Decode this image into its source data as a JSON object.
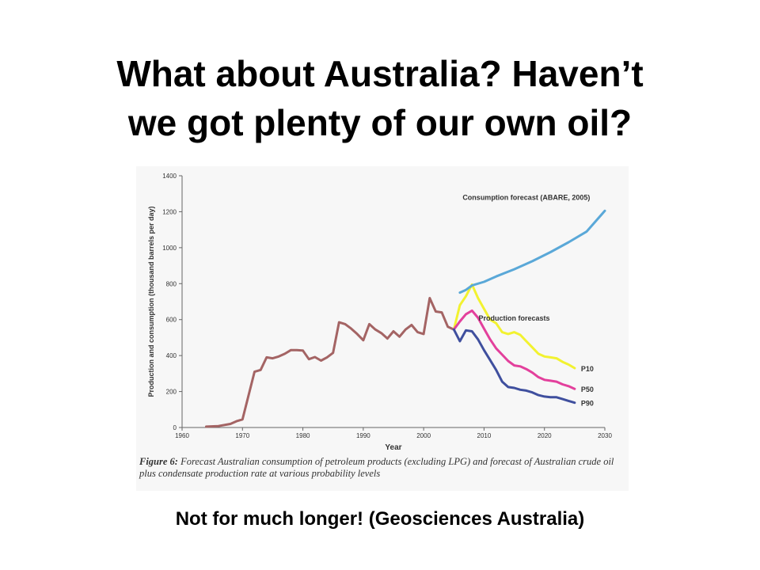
{
  "slide": {
    "title_line1": "What about Australia? Haven’t",
    "title_line2": "we got plenty of our own oil?",
    "footer": "Not for much longer! (Geosciences Australia)"
  },
  "figure": {
    "caption_label": "Figure 6:",
    "caption_text": "Forecast Australian consumption of petroleum products (excluding LPG) and forecast of Australian crude oil plus condensate production rate at various probability levels"
  },
  "chart_data": {
    "type": "line",
    "title": "",
    "xlabel": "Year",
    "ylabel": "Production and consumption (thousand barrels per day)",
    "xlim": [
      1960,
      2030
    ],
    "ylim": [
      0,
      1400
    ],
    "x_ticks": [
      1960,
      1970,
      1980,
      1990,
      2000,
      2010,
      2020,
      2030
    ],
    "y_ticks": [
      0,
      200,
      400,
      600,
      800,
      1000,
      1200,
      1400
    ],
    "grid": false,
    "annotations": [
      {
        "text": "Consumption forecast (ABARE, 2005)",
        "x": 2017,
        "y": 1265
      },
      {
        "text": "Production forecasts",
        "x": 2015,
        "y": 595
      }
    ],
    "series": [
      {
        "name": "",
        "color": "#a46464",
        "points": [
          [
            1964,
            5
          ],
          [
            1966,
            8
          ],
          [
            1968,
            20
          ],
          [
            1969,
            35
          ],
          [
            1970,
            45
          ],
          [
            1972,
            310
          ],
          [
            1973,
            320
          ],
          [
            1974,
            390
          ],
          [
            1975,
            385
          ],
          [
            1976,
            395
          ],
          [
            1977,
            410
          ],
          [
            1978,
            430
          ],
          [
            1979,
            430
          ],
          [
            1980,
            428
          ],
          [
            1981,
            380
          ],
          [
            1982,
            392
          ],
          [
            1983,
            372
          ],
          [
            1984,
            390
          ],
          [
            1985,
            415
          ],
          [
            1986,
            585
          ],
          [
            1987,
            575
          ],
          [
            1988,
            550
          ],
          [
            1989,
            520
          ],
          [
            1990,
            485
          ],
          [
            1991,
            575
          ],
          [
            1992,
            545
          ],
          [
            1993,
            525
          ],
          [
            1994,
            495
          ],
          [
            1995,
            535
          ],
          [
            1996,
            505
          ],
          [
            1997,
            545
          ],
          [
            1998,
            570
          ],
          [
            1999,
            530
          ],
          [
            2000,
            520
          ],
          [
            2001,
            720
          ],
          [
            2002,
            645
          ],
          [
            2003,
            640
          ],
          [
            2004,
            560
          ],
          [
            2005,
            545
          ]
        ]
      },
      {
        "name": "P10",
        "color": "#f2f230",
        "points": [
          [
            2005,
            545
          ],
          [
            2006,
            680
          ],
          [
            2007,
            730
          ],
          [
            2008,
            795
          ],
          [
            2009,
            720
          ],
          [
            2010,
            660
          ],
          [
            2011,
            600
          ],
          [
            2012,
            580
          ],
          [
            2013,
            530
          ],
          [
            2014,
            520
          ],
          [
            2015,
            530
          ],
          [
            2016,
            515
          ],
          [
            2017,
            480
          ],
          [
            2018,
            445
          ],
          [
            2019,
            410
          ],
          [
            2020,
            395
          ],
          [
            2021,
            390
          ],
          [
            2022,
            385
          ],
          [
            2023,
            365
          ],
          [
            2024,
            350
          ],
          [
            2025,
            330
          ]
        ]
      },
      {
        "name": "P50",
        "color": "#e3409c",
        "points": [
          [
            2005,
            545
          ],
          [
            2006,
            590
          ],
          [
            2007,
            630
          ],
          [
            2008,
            650
          ],
          [
            2009,
            610
          ],
          [
            2010,
            550
          ],
          [
            2011,
            490
          ],
          [
            2012,
            440
          ],
          [
            2013,
            405
          ],
          [
            2014,
            370
          ],
          [
            2015,
            345
          ],
          [
            2016,
            340
          ],
          [
            2017,
            325
          ],
          [
            2018,
            305
          ],
          [
            2019,
            280
          ],
          [
            2020,
            265
          ],
          [
            2021,
            260
          ],
          [
            2022,
            255
          ],
          [
            2023,
            240
          ],
          [
            2024,
            230
          ],
          [
            2025,
            215
          ]
        ]
      },
      {
        "name": "P90",
        "color": "#3f4f9e",
        "points": [
          [
            2005,
            545
          ],
          [
            2006,
            480
          ],
          [
            2007,
            540
          ],
          [
            2008,
            535
          ],
          [
            2009,
            490
          ],
          [
            2010,
            430
          ],
          [
            2011,
            375
          ],
          [
            2012,
            320
          ],
          [
            2013,
            255
          ],
          [
            2014,
            225
          ],
          [
            2015,
            220
          ],
          [
            2016,
            210
          ],
          [
            2017,
            205
          ],
          [
            2018,
            195
          ],
          [
            2019,
            180
          ],
          [
            2020,
            172
          ],
          [
            2021,
            168
          ],
          [
            2022,
            168
          ],
          [
            2023,
            158
          ],
          [
            2024,
            148
          ],
          [
            2025,
            138
          ]
        ]
      },
      {
        "name": "",
        "color": "#5aa8d8",
        "points": [
          [
            2006,
            750
          ],
          [
            2007,
            765
          ],
          [
            2008,
            790
          ],
          [
            2010,
            810
          ],
          [
            2012,
            840
          ],
          [
            2015,
            880
          ],
          [
            2018,
            925
          ],
          [
            2021,
            975
          ],
          [
            2024,
            1030
          ],
          [
            2027,
            1090
          ],
          [
            2030,
            1205
          ]
        ]
      }
    ]
  }
}
